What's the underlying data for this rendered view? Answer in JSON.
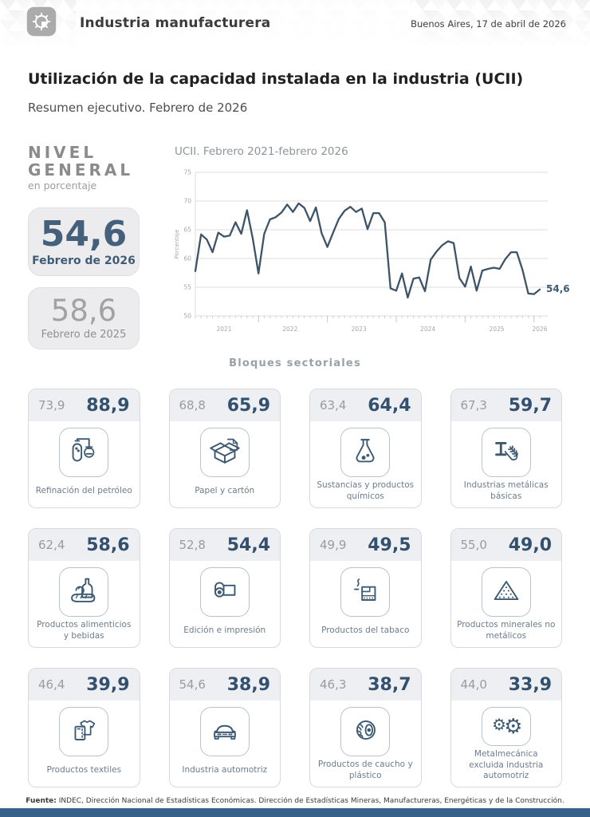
{
  "header": {
    "title": "Industria manufacturera",
    "date": "Buenos Aires, 17 de abril de 2026"
  },
  "page": {
    "title": "Utilización de la capacidad instalada en la industria (UCII)",
    "subtitle": "Resumen ejecutivo. Febrero de 2026"
  },
  "nivel_general": {
    "label": "NIVEL GENERAL",
    "sublabel": "en porcentaje",
    "current": {
      "value": "54,6",
      "period": "Febrero de 2026"
    },
    "previous": {
      "value": "58,6",
      "period": "Febrero de 2025"
    }
  },
  "chart_data": {
    "type": "line",
    "title": "UCII. Febrero 2021-febrero 2026",
    "ylabel": "Porcentaje",
    "ylim": [
      50,
      75
    ],
    "yticks": [
      50,
      55,
      60,
      65,
      70,
      75
    ],
    "x_start": "Febrero 2021",
    "x_end": "Febrero 2026",
    "year_labels": [
      "2021",
      "2022",
      "2023",
      "2024",
      "2025",
      "2026"
    ],
    "end_label": "54,6",
    "grid": true,
    "line_color": "#3d5468",
    "values": [
      57.8,
      64.2,
      63.3,
      61.1,
      64.5,
      63.8,
      64.0,
      66.3,
      64.3,
      68.4,
      63.5,
      57.4,
      64.3,
      66.8,
      67.2,
      68.0,
      69.4,
      68.1,
      69.6,
      68.8,
      66.5,
      68.9,
      64.4,
      62.0,
      64.5,
      66.9,
      68.3,
      69.0,
      68.1,
      68.7,
      65.1,
      67.9,
      67.9,
      66.3,
      54.8,
      54.4,
      57.4,
      53.2,
      56.5,
      56.7,
      54.3,
      59.8,
      61.2,
      62.3,
      63.0,
      62.7,
      56.6,
      55.1,
      58.6,
      54.4,
      57.9,
      58.2,
      58.4,
      58.2,
      59.9,
      61.1,
      61.1,
      58.0,
      53.9,
      53.8,
      54.6
    ]
  },
  "sectors": {
    "heading": "Bloques sectoriales",
    "cards": [
      {
        "prev": "73,9",
        "current": "88,9",
        "label": "Refinación del petróleo",
        "icon": "oil-refinery-icon"
      },
      {
        "prev": "68,8",
        "current": "65,9",
        "label": "Papel y cartón",
        "icon": "cardboard-box-icon"
      },
      {
        "prev": "63,4",
        "current": "64,4",
        "label": "Sustancias y productos químicos",
        "icon": "chemical-flask-icon"
      },
      {
        "prev": "67,3",
        "current": "59,7",
        "label": "Industrias metálicas básicas",
        "icon": "steel-beam-icon"
      },
      {
        "prev": "62,4",
        "current": "58,6",
        "label": "Productos alimenticios y bebidas",
        "icon": "food-beverage-icon"
      },
      {
        "prev": "52,8",
        "current": "54,4",
        "label": "Edición e impresión",
        "icon": "paper-roll-icon"
      },
      {
        "prev": "49,9",
        "current": "49,5",
        "label": "Productos del tabaco",
        "icon": "cigarette-icon"
      },
      {
        "prev": "55,0",
        "current": "49,0",
        "label": "Productos minerales no metálicos",
        "icon": "mineral-pile-icon"
      },
      {
        "prev": "46,4",
        "current": "39,9",
        "label": "Productos textiles",
        "icon": "tshirt-icon"
      },
      {
        "prev": "54,6",
        "current": "38,9",
        "label": "Industria automotriz",
        "icon": "car-icon"
      },
      {
        "prev": "46,3",
        "current": "38,7",
        "label": "Productos de caucho y plástico",
        "icon": "tire-icon"
      },
      {
        "prev": "44,0",
        "current": "33,9",
        "label": "Metalmecánica excluida industria automotriz",
        "icon": "gears-icon"
      }
    ]
  },
  "footer": {
    "source_label": "Fuente:",
    "source_text": " INDEC, Dirección Nacional de Estadísticas Económicas. Dirección de Estadísticas Mineras, Manufactureras, Energéticas y de la Construcción."
  },
  "colors": {
    "accent_navy": "#3d5a73",
    "value_navy": "#33516e",
    "muted_gray": "#9b9b9b",
    "line_color": "#3d5468",
    "bottom_bar": "#35618a"
  }
}
